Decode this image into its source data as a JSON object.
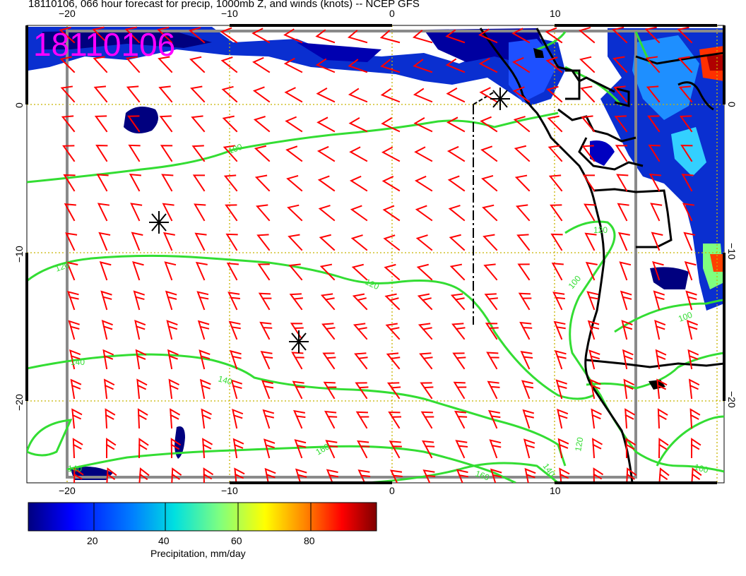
{
  "title": "18110106, 066 hour forecast for precip, 1000mb Z, and winds (knots) -- NCEP GFS",
  "stamp": "18110106",
  "axes": {
    "x_ticks_top": [
      "−20",
      "−10",
      "0",
      "10"
    ],
    "x_ticks_bottom": [
      "−20",
      "−10",
      "0",
      "10"
    ],
    "y_ticks_left": [
      "0",
      "−10",
      "−20"
    ],
    "y_ticks_right": [
      "0",
      "−10",
      "−20"
    ]
  },
  "contours": {
    "color": "#33dd33",
    "labels": [
      "100",
      "120",
      "120",
      "140",
      "140",
      "140",
      "160",
      "160",
      "140",
      "120",
      "100",
      "100",
      "120",
      "100"
    ]
  },
  "colorbar": {
    "label": "Precipitation, mm/day",
    "ticks": [
      "20",
      "40",
      "60",
      "80"
    ],
    "colors": [
      "#00007f",
      "#0000ff",
      "#007fff",
      "#00ffff",
      "#7fff7f",
      "#ffff00",
      "#ff7f00",
      "#ff0000",
      "#7f0000"
    ]
  },
  "colors": {
    "barb": "#ff0000",
    "coast": "#000000",
    "grid": "#c8b400",
    "stamp": "#ff00ff"
  }
}
